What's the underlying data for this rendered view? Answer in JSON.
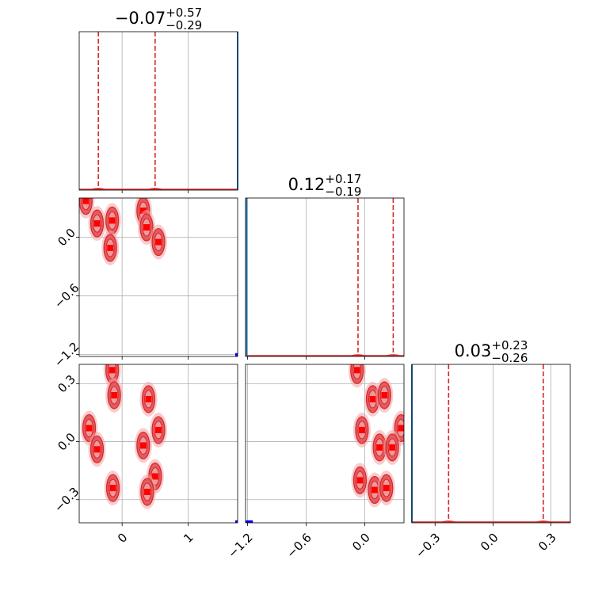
{
  "chart_data": {
    "type": "scatter",
    "kind": "corner-plot",
    "parameters": 3,
    "titles": [
      {
        "median": "−0.07",
        "plus": "+0.57",
        "minus": "−0.29"
      },
      {
        "median": "0.12",
        "plus": "+0.17",
        "minus": "−0.19"
      },
      {
        "median": "0.03",
        "plus": "+0.23",
        "minus": "−0.26"
      }
    ],
    "ranges": [
      [
        -0.65,
        1.75
      ],
      [
        -1.22,
        0.4
      ],
      [
        -0.42,
        0.4
      ]
    ],
    "ticks": [
      {
        "values": [
          0,
          1
        ],
        "labels": [
          "0",
          "1"
        ]
      },
      {
        "values": [
          -1.2,
          -0.6,
          0.0
        ],
        "labels": [
          "−1.2",
          "−0.6",
          "0.0"
        ]
      },
      {
        "values": [
          -0.3,
          0.0,
          0.3
        ],
        "labels": [
          "−0.3",
          "0.0",
          "0.3"
        ]
      }
    ],
    "quantiles": [
      [
        -0.36,
        0.5
      ],
      [
        -0.07,
        0.29
      ],
      [
        -0.23,
        0.26
      ]
    ],
    "truths": [
      1.75,
      -1.21,
      -0.42
    ],
    "clusters": {
      "p1_p0": [
        [
          -0.55,
          0.37
        ],
        [
          -0.38,
          0.14
        ],
        [
          -0.15,
          0.17
        ],
        [
          -0.18,
          -0.11
        ],
        [
          0.32,
          0.27
        ],
        [
          0.37,
          0.1
        ],
        [
          0.55,
          -0.05
        ]
      ],
      "p2_p0": [
        [
          -0.15,
          0.37
        ],
        [
          -0.12,
          0.24
        ],
        [
          -0.5,
          0.07
        ],
        [
          -0.38,
          -0.04
        ],
        [
          -0.14,
          -0.24
        ],
        [
          0.32,
          -0.02
        ],
        [
          0.4,
          0.22
        ],
        [
          0.55,
          0.06
        ],
        [
          0.5,
          -0.18
        ],
        [
          0.38,
          -0.26
        ]
      ],
      "p2_p1": [
        [
          -0.08,
          0.37
        ],
        [
          0.08,
          0.22
        ],
        [
          0.2,
          0.24
        ],
        [
          -0.03,
          0.06
        ],
        [
          0.37,
          0.07
        ],
        [
          0.15,
          -0.03
        ],
        [
          0.28,
          -0.03
        ],
        [
          -0.05,
          -0.2
        ],
        [
          0.1,
          -0.25
        ],
        [
          0.22,
          -0.24
        ]
      ]
    }
  }
}
